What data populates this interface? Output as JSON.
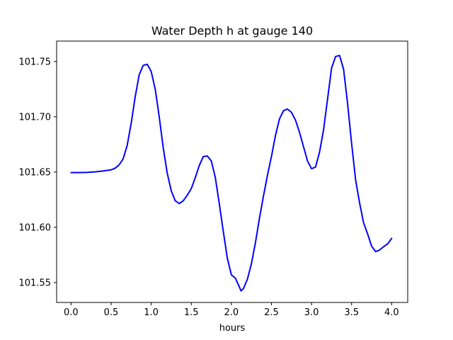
{
  "chart_data": {
    "type": "line",
    "title": "Water Depth h at gauge 140",
    "xlabel": "hours",
    "ylabel": "",
    "xlim": [
      -0.18,
      4.2
    ],
    "ylim": [
      101.532,
      101.7685
    ],
    "xticks": [
      0.0,
      0.5,
      1.0,
      1.5,
      2.0,
      2.5,
      3.0,
      3.5,
      4.0
    ],
    "xtick_labels": [
      "0.0",
      "0.5",
      "1.0",
      "1.5",
      "2.0",
      "2.5",
      "3.0",
      "3.5",
      "4.0"
    ],
    "yticks": [
      101.55,
      101.6,
      101.65,
      101.7,
      101.75
    ],
    "ytick_labels": [
      "101.55",
      "101.60",
      "101.65",
      "101.70",
      "101.75"
    ],
    "grid": false,
    "line_color": "#0000ff",
    "series": [
      {
        "name": "",
        "x": [
          0.0,
          0.1,
          0.2,
          0.3,
          0.4,
          0.5,
          0.55,
          0.6,
          0.65,
          0.7,
          0.75,
          0.8,
          0.85,
          0.9,
          0.95,
          1.0,
          1.05,
          1.1,
          1.15,
          1.2,
          1.25,
          1.3,
          1.35,
          1.4,
          1.45,
          1.5,
          1.55,
          1.6,
          1.65,
          1.7,
          1.75,
          1.8,
          1.85,
          1.9,
          1.95,
          2.0,
          2.05,
          2.1,
          2.12,
          2.15,
          2.2,
          2.25,
          2.3,
          2.35,
          2.4,
          2.45,
          2.5,
          2.55,
          2.6,
          2.65,
          2.7,
          2.75,
          2.8,
          2.85,
          2.9,
          2.95,
          3.0,
          3.05,
          3.1,
          3.15,
          3.2,
          3.25,
          3.3,
          3.35,
          3.4,
          3.45,
          3.5,
          3.55,
          3.6,
          3.65,
          3.7,
          3.75,
          3.8,
          3.85,
          3.9,
          3.95,
          4.0
        ],
        "y": [
          101.6495,
          101.6495,
          101.6497,
          101.6502,
          101.651,
          101.652,
          101.6535,
          101.6565,
          101.662,
          101.674,
          101.694,
          101.718,
          101.738,
          101.7465,
          101.7475,
          101.741,
          101.725,
          101.7,
          101.672,
          101.649,
          101.633,
          101.624,
          101.6215,
          101.624,
          101.629,
          101.635,
          101.645,
          101.656,
          101.664,
          101.6645,
          101.66,
          101.645,
          101.621,
          101.596,
          101.572,
          101.557,
          101.554,
          101.546,
          101.5425,
          101.5445,
          101.553,
          101.567,
          101.586,
          101.608,
          101.628,
          101.647,
          101.664,
          101.683,
          101.698,
          101.7055,
          101.707,
          101.704,
          101.697,
          101.686,
          101.673,
          101.66,
          101.653,
          101.6545,
          101.668,
          101.688,
          101.716,
          101.744,
          101.7545,
          101.7555,
          101.743,
          101.712,
          101.676,
          101.643,
          101.622,
          101.604,
          101.594,
          101.583,
          101.578,
          101.5795,
          101.5825,
          101.585,
          101.59
        ]
      }
    ]
  }
}
